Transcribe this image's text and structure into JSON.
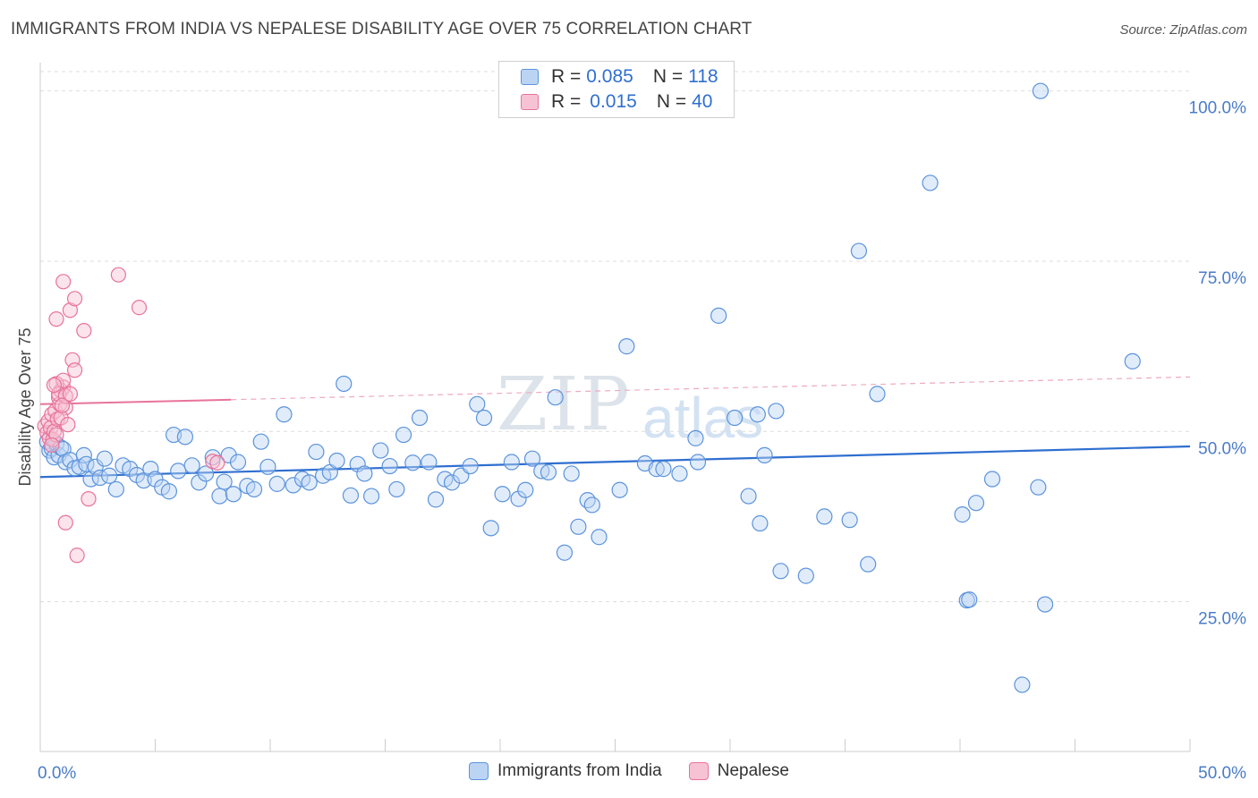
{
  "title": "IMMIGRANTS FROM INDIA VS NEPALESE DISABILITY AGE OVER 75 CORRELATION CHART",
  "source": "Source: ZipAtlas.com",
  "watermark": {
    "zip": "ZIP",
    "atlas": "atlas"
  },
  "colors": {
    "blue": "#5b93dc",
    "blue_fill": "#bcd4f4",
    "pink": "#e8739a",
    "pink_fill": "#f7c3d4",
    "accent": "#2f6fd0"
  },
  "legend": {
    "india": {
      "r_label": "R =",
      "r_value": "0.085",
      "n_label": "N =",
      "n_value": "118"
    },
    "nepal": {
      "r_label": "R =",
      "r_value": "0.015",
      "n_label": "N =",
      "n_value": "40"
    }
  },
  "chart_data": {
    "type": "scatter",
    "title": "IMMIGRANTS FROM INDIA VS NEPALESE DISABILITY AGE OVER 75 CORRELATION CHART",
    "xlabel": "",
    "ylabel": "Disability Age Over 75",
    "xlim": [
      0,
      50
    ],
    "ylim": [
      3,
      106
    ],
    "x_tick_labels": [
      "0.0%",
      "50.0%"
    ],
    "y_ticks": [
      25,
      50,
      75,
      100
    ],
    "y_tick_labels": [
      "25.0%",
      "50.0%",
      "75.0%",
      "100.0%"
    ],
    "legend_position": "top-center",
    "series": [
      {
        "name": "Immigrants from India",
        "color": "#5b93dc",
        "trend": {
          "x0": 0,
          "y0": 43.3,
          "x1": 50,
          "y1": 47.8,
          "dashed": false
        },
        "points": [
          [
            0.3,
            48.5
          ],
          [
            0.4,
            47.2
          ],
          [
            0.5,
            47.5
          ],
          [
            0.6,
            46.2
          ],
          [
            0.7,
            48.2
          ],
          [
            0.8,
            46.5
          ],
          [
            0.9,
            47.6
          ],
          [
            1.0,
            47.4
          ],
          [
            1.1,
            45.5
          ],
          [
            1.3,
            45.8
          ],
          [
            1.5,
            44.6
          ],
          [
            1.7,
            44.8
          ],
          [
            1.9,
            46.5
          ],
          [
            2.0,
            45.2
          ],
          [
            2.2,
            43.0
          ],
          [
            2.4,
            44.8
          ],
          [
            2.6,
            43.2
          ],
          [
            2.8,
            46.0
          ],
          [
            3.0,
            43.5
          ],
          [
            3.3,
            41.5
          ],
          [
            3.6,
            45.0
          ],
          [
            3.9,
            44.5
          ],
          [
            4.2,
            43.6
          ],
          [
            4.5,
            42.8
          ],
          [
            4.8,
            44.5
          ],
          [
            5.0,
            43.0
          ],
          [
            5.3,
            41.8
          ],
          [
            5.6,
            41.2
          ],
          [
            5.8,
            49.5
          ],
          [
            6.0,
            44.2
          ],
          [
            6.3,
            49.2
          ],
          [
            6.6,
            45.0
          ],
          [
            6.9,
            42.5
          ],
          [
            7.2,
            43.8
          ],
          [
            7.5,
            46.2
          ],
          [
            7.8,
            40.5
          ],
          [
            8.0,
            42.6
          ],
          [
            8.2,
            46.5
          ],
          [
            8.4,
            40.8
          ],
          [
            8.6,
            45.5
          ],
          [
            9.0,
            42.0
          ],
          [
            9.3,
            41.5
          ],
          [
            9.6,
            48.5
          ],
          [
            9.9,
            44.8
          ],
          [
            10.3,
            42.3
          ],
          [
            10.6,
            52.5
          ],
          [
            11.0,
            42.1
          ],
          [
            11.4,
            43.0
          ],
          [
            11.7,
            42.5
          ],
          [
            12.0,
            47.0
          ],
          [
            12.3,
            43.5
          ],
          [
            12.6,
            44.0
          ],
          [
            12.9,
            45.7
          ],
          [
            13.2,
            57.0
          ],
          [
            13.5,
            40.6
          ],
          [
            13.8,
            45.2
          ],
          [
            14.1,
            43.8
          ],
          [
            14.4,
            40.5
          ],
          [
            14.8,
            47.2
          ],
          [
            15.2,
            44.9
          ],
          [
            15.5,
            41.5
          ],
          [
            15.8,
            49.5
          ],
          [
            16.2,
            45.4
          ],
          [
            16.5,
            52.0
          ],
          [
            16.9,
            45.5
          ],
          [
            17.2,
            40.0
          ],
          [
            17.6,
            43.0
          ],
          [
            17.9,
            42.5
          ],
          [
            18.3,
            43.5
          ],
          [
            18.7,
            44.9
          ],
          [
            19.0,
            54.0
          ],
          [
            19.3,
            52.0
          ],
          [
            19.6,
            35.8
          ],
          [
            20.1,
            40.8
          ],
          [
            20.5,
            45.5
          ],
          [
            20.8,
            40.1
          ],
          [
            21.1,
            41.4
          ],
          [
            21.4,
            46.0
          ],
          [
            21.8,
            44.2
          ],
          [
            22.1,
            44.0
          ],
          [
            22.4,
            55.0
          ],
          [
            22.8,
            32.2
          ],
          [
            23.1,
            43.8
          ],
          [
            23.4,
            36.0
          ],
          [
            23.8,
            39.9
          ],
          [
            24.0,
            39.2
          ],
          [
            24.3,
            34.5
          ],
          [
            25.2,
            41.4
          ],
          [
            25.5,
            62.5
          ],
          [
            26.3,
            45.3
          ],
          [
            26.8,
            44.5
          ],
          [
            27.1,
            44.5
          ],
          [
            27.8,
            43.8
          ],
          [
            28.5,
            49.0
          ],
          [
            28.6,
            45.5
          ],
          [
            29.5,
            67.0
          ],
          [
            30.2,
            52.0
          ],
          [
            30.8,
            40.5
          ],
          [
            31.2,
            52.5
          ],
          [
            31.5,
            46.5
          ],
          [
            32.0,
            53.0
          ],
          [
            31.3,
            36.5
          ],
          [
            32.2,
            29.5
          ],
          [
            33.3,
            28.8
          ],
          [
            34.1,
            37.5
          ],
          [
            35.2,
            37.0
          ],
          [
            35.6,
            76.5
          ],
          [
            36.0,
            30.5
          ],
          [
            36.4,
            55.5
          ],
          [
            38.7,
            86.5
          ],
          [
            40.1,
            37.8
          ],
          [
            40.7,
            39.5
          ],
          [
            40.3,
            25.2
          ],
          [
            41.4,
            43.0
          ],
          [
            43.4,
            41.8
          ],
          [
            43.5,
            100.0
          ],
          [
            40.4,
            25.3
          ],
          [
            43.7,
            24.6
          ],
          [
            42.7,
            12.8
          ],
          [
            47.5,
            60.3
          ]
        ]
      },
      {
        "name": "Nepalese",
        "color": "#e8739a",
        "trend": {
          "x0": 0,
          "y0": 54.0,
          "x1": 50,
          "y1": 58.0,
          "solid_until": 8.3
        },
        "points": [
          [
            0.2,
            50.8
          ],
          [
            0.3,
            49.8
          ],
          [
            0.35,
            51.5
          ],
          [
            0.4,
            49.0
          ],
          [
            0.45,
            50.5
          ],
          [
            0.5,
            52.5
          ],
          [
            0.55,
            48.8
          ],
          [
            0.6,
            50.0
          ],
          [
            0.65,
            53.0
          ],
          [
            0.7,
            49.5
          ],
          [
            0.75,
            51.8
          ],
          [
            0.8,
            55.0
          ],
          [
            0.85,
            54.0
          ],
          [
            0.9,
            56.0
          ],
          [
            1.0,
            56.5
          ],
          [
            1.1,
            53.5
          ],
          [
            0.7,
            57.0
          ],
          [
            0.8,
            55.5
          ],
          [
            0.9,
            52.0
          ],
          [
            1.0,
            57.5
          ],
          [
            1.1,
            55.2
          ],
          [
            1.2,
            51.0
          ],
          [
            0.6,
            56.8
          ],
          [
            0.95,
            53.8
          ],
          [
            1.3,
            55.5
          ],
          [
            1.4,
            60.5
          ],
          [
            1.5,
            59.0
          ],
          [
            0.7,
            66.5
          ],
          [
            1.3,
            67.8
          ],
          [
            1.0,
            72.0
          ],
          [
            1.5,
            69.5
          ],
          [
            1.9,
            64.8
          ],
          [
            3.4,
            73.0
          ],
          [
            4.3,
            68.2
          ],
          [
            1.1,
            36.6
          ],
          [
            1.6,
            31.8
          ],
          [
            2.1,
            40.1
          ],
          [
            7.5,
            45.6
          ],
          [
            7.7,
            45.4
          ],
          [
            0.5,
            48.0
          ]
        ]
      }
    ]
  },
  "bottom_legend": {
    "india": "Immigrants from India",
    "nepal": "Nepalese"
  }
}
